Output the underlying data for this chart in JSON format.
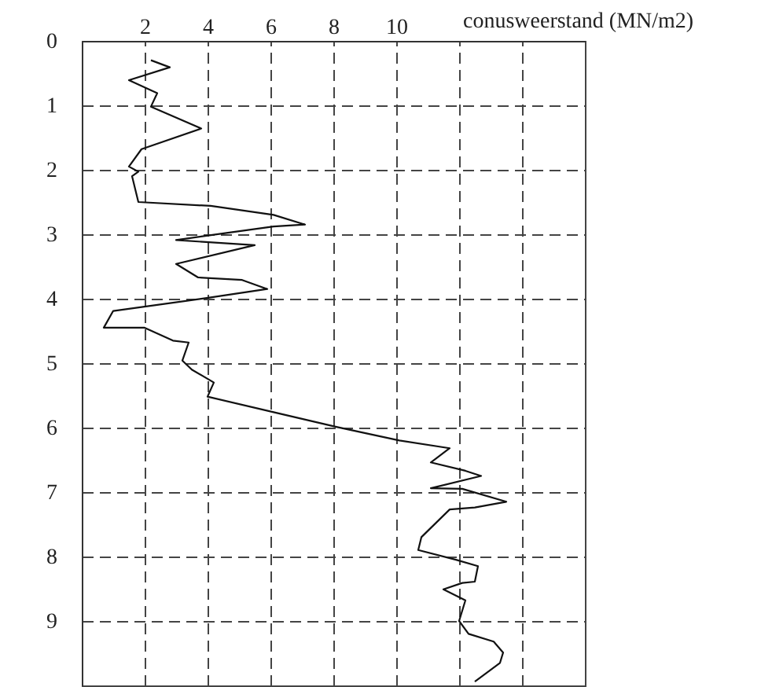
{
  "chart_data": {
    "type": "line",
    "xlabel": "conusweerstand (MN/m2)",
    "color": "#111111",
    "grid": true,
    "line_style": "solid",
    "xlim": [
      0,
      16
    ],
    "xticks": [
      2,
      4,
      6,
      8,
      10,
      {
        "value": 12,
        "label": null
      },
      {
        "value": 14,
        "label": null
      }
    ],
    "ylim": [
      10,
      0
    ],
    "yticks": [
      0,
      1,
      2,
      3,
      4,
      5,
      6,
      7,
      8,
      9
    ],
    "x": [
      2.2,
      2.8,
      1.5,
      2.4,
      2.2,
      3.8,
      1.9,
      1.5,
      1.8,
      1.6,
      1.8,
      4.1,
      6.1,
      7.1,
      6.1,
      4.6,
      3.0,
      5.5,
      3.0,
      3.7,
      5.1,
      5.9,
      4.1,
      1.0,
      0.7,
      2.0,
      2.9,
      3.4,
      3.2,
      3.5,
      4.2,
      4.0,
      6.1,
      8.1,
      10.1,
      11.7,
      11.1,
      12.2,
      12.7,
      11.1,
      12.1,
      13.5,
      12.5,
      11.7,
      10.8,
      10.7,
      11.9,
      12.6,
      12.5,
      12.1,
      11.5,
      12.2,
      12.0,
      12.3,
      13.1,
      13.4,
      13.3,
      12.5
    ],
    "values": [
      0.3,
      0.41,
      0.61,
      0.81,
      1.02,
      1.36,
      1.68,
      1.95,
      2.03,
      2.1,
      2.5,
      2.56,
      2.7,
      2.85,
      2.88,
      2.98,
      3.09,
      3.17,
      3.46,
      3.67,
      3.71,
      3.85,
      3.98,
      4.19,
      4.45,
      4.45,
      4.65,
      4.68,
      4.96,
      5.1,
      5.3,
      5.52,
      5.76,
      5.99,
      6.2,
      6.32,
      6.54,
      6.67,
      6.75,
      6.94,
      6.95,
      7.15,
      7.24,
      7.27,
      7.7,
      7.9,
      8.05,
      8.15,
      8.39,
      8.41,
      8.51,
      8.68,
      9.0,
      9.2,
      9.32,
      9.49,
      9.65,
      9.94
    ]
  }
}
